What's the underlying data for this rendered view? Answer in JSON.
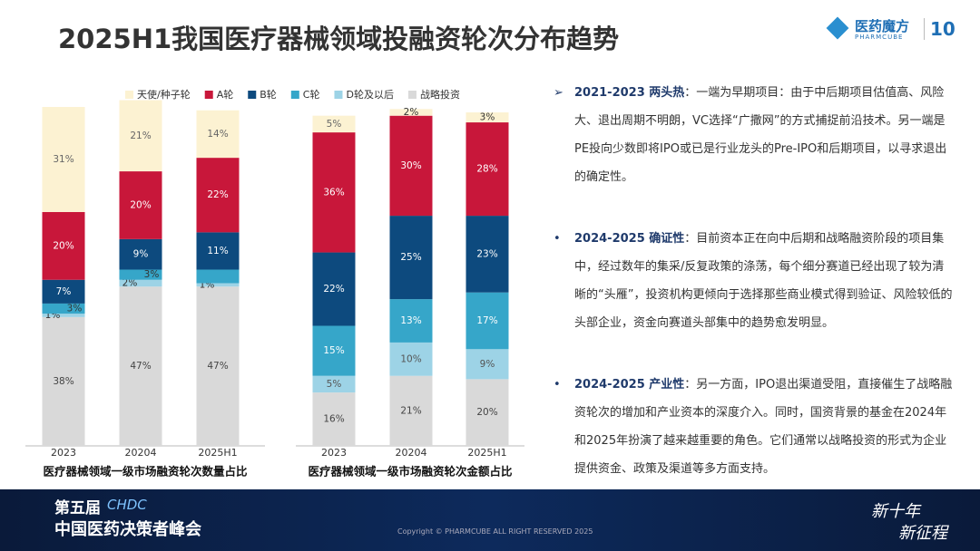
{
  "header": {
    "title": "2025H1我国医疗器械领域投融资轮次分布趋势",
    "logo": "医药魔方",
    "logo_sub": "PHARMCUBE",
    "anniversary": "10"
  },
  "chart_data": [
    {
      "type": "stacked_bar",
      "title": "医疗器械领域一级市场融资轮次数量占比",
      "categories": [
        "2023",
        "20204",
        "2025H1"
      ],
      "ylim": [
        0,
        100
      ],
      "series": [
        {
          "name": "天使/种子轮",
          "color": "#fcf2d2",
          "values": [
            31,
            21,
            14
          ],
          "value_labels": [
            "31%",
            "21%",
            "14%"
          ]
        },
        {
          "name": "A轮",
          "color": "#c8173a",
          "values": [
            20,
            20,
            22
          ],
          "value_labels": [
            "20%",
            "20%",
            "22%"
          ]
        },
        {
          "name": "B轮",
          "color": "#0d4a7e",
          "values": [
            7,
            9,
            11
          ],
          "value_labels": [
            "7%",
            "9%",
            "11%"
          ]
        },
        {
          "name": "C轮",
          "color": "#36a6c9",
          "values": [
            3,
            3,
            4
          ],
          "value_labels": [
            "3%",
            "3%",
            null
          ]
        },
        {
          "name": "D轮及以后",
          "color": "#9dd3e6",
          "values": [
            1,
            2,
            1
          ],
          "value_labels": [
            "1%",
            "2%",
            "1%"
          ]
        },
        {
          "name": "战略投资",
          "color": "#d9d9d9",
          "values": [
            38,
            47,
            47
          ],
          "value_labels": [
            "38%",
            "47%",
            "47%"
          ]
        }
      ]
    },
    {
      "type": "stacked_bar",
      "title": "医疗器械领域一级市场融资轮次金额占比",
      "categories": [
        "2023",
        "20204",
        "2025H1"
      ],
      "ylim": [
        0,
        100
      ],
      "series": [
        {
          "color": "#fcf2d2",
          "values": [
            5,
            2,
            3
          ],
          "value_labels": [
            "5%",
            "2%",
            "3%"
          ]
        },
        {
          "color": "#c8173a",
          "values": [
            36,
            30,
            28
          ],
          "value_labels": [
            "36%",
            "30%",
            "28%"
          ]
        },
        {
          "color": "#0d4a7e",
          "values": [
            22,
            25,
            23
          ],
          "value_labels": [
            "22%",
            "25%",
            "23%"
          ]
        },
        {
          "color": "#36a6c9",
          "values": [
            15,
            13,
            17
          ],
          "value_labels": [
            "15%",
            "13%",
            "17%"
          ]
        },
        {
          "color": "#9dd3e6",
          "values": [
            5,
            10,
            9
          ],
          "value_labels": [
            "5%",
            "10%",
            "9%"
          ]
        },
        {
          "color": "#d9d9d9",
          "values": [
            16,
            21,
            20
          ],
          "value_labels": [
            "16%",
            "21%",
            "20%"
          ]
        }
      ]
    }
  ],
  "bullets": [
    {
      "heading": "2021-2023 两头热",
      "body": "：一端为早期项目：由于中后期项目估值高、风险大、退出周期不明朗，VC选择“广撒网”的方式捕捉前沿技术。另一端是PE投向少数即将IPO或已是行业龙头的Pre-IPO和后期项目，以寻求退出的确定性。"
    },
    {
      "heading": "2024-2025 确证性",
      "body": "：目前资本正在向中后期和战略融资阶段的项目集中，经过数年的集采/反复政策的涤荡，每个细分赛道已经出现了较为清晰的“头雁”，投资机构更倾向于选择那些商业模式得到验证、风险较低的头部企业，资金向赛道头部集中的趋势愈发明显。"
    },
    {
      "heading": "2024-2025 产业性",
      "body": "：另一方面，IPO退出渠道受阻，直接催生了战略融资轮次的增加和产业资本的深度介入。同时，国资背景的基金在2024年和2025年扮演了越来越重要的角色。它们通常以战略投资的形式为企业提供资金、政策及渠道等多方面支持。"
    }
  ],
  "footer": {
    "event_edition": "第五届",
    "event_brand": "CHDC",
    "event_name": "中国医药决策者峰会",
    "slogan_1": "新十年",
    "slogan_2": "新征程",
    "copyright": "Copyright © PHARMCUBE ALL RIGHT RESERVED 2025"
  }
}
